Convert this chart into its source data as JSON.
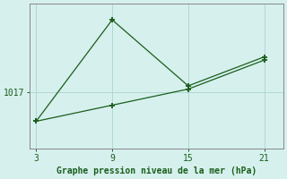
{
  "line1_x": [
    3,
    9,
    15,
    21
  ],
  "line1_y": [
    1015.2,
    1021.5,
    1017.4,
    1019.2
  ],
  "line2_x": [
    3,
    9,
    15,
    21
  ],
  "line2_y": [
    1015.2,
    1016.2,
    1017.2,
    1019.0
  ],
  "line_color": "#1a5e1a",
  "bg_color": "#d6f0ee",
  "grid_color": "#b0d8d0",
  "axis_color": "#888888",
  "xlabel": "Graphe pression niveau de la mer (hPa)",
  "xlabel_color": "#1a5e1a",
  "ytick_labels": [
    "1017"
  ],
  "ytick_values": [
    1017
  ],
  "xtick_values": [
    3,
    9,
    15,
    21
  ],
  "xlim": [
    2.5,
    22.5
  ],
  "ylim": [
    1013.5,
    1022.5
  ],
  "figsize": [
    3.2,
    2.0
  ],
  "dpi": 100
}
